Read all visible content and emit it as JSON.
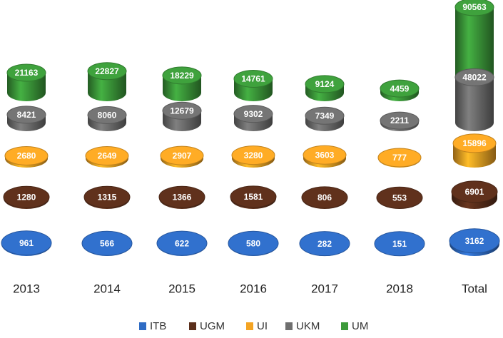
{
  "chart_data": {
    "type": "cylinder",
    "categories": [
      "2013",
      "2014",
      "2015",
      "2016",
      "2017",
      "2018",
      "Total"
    ],
    "series": [
      {
        "name": "ITB",
        "color": "#2f6cc4",
        "values": [
          961,
          566,
          622,
          580,
          282,
          151,
          3162
        ]
      },
      {
        "name": "UGM",
        "color": "#5b2f1b",
        "values": [
          1280,
          1315,
          1366,
          1581,
          806,
          553,
          6901
        ]
      },
      {
        "name": "UI",
        "color": "#f4a423",
        "values": [
          2680,
          2649,
          2907,
          3280,
          3603,
          777,
          15896
        ]
      },
      {
        "name": "UKM",
        "color": "#6f6f6f",
        "values": [
          8421,
          8060,
          12679,
          9302,
          7349,
          2211,
          48022
        ]
      },
      {
        "name": "UM",
        "color": "#3c9a3a",
        "values": [
          21163,
          22827,
          18229,
          14761,
          9124,
          4459,
          90563
        ]
      }
    ],
    "legend": "bottom"
  }
}
